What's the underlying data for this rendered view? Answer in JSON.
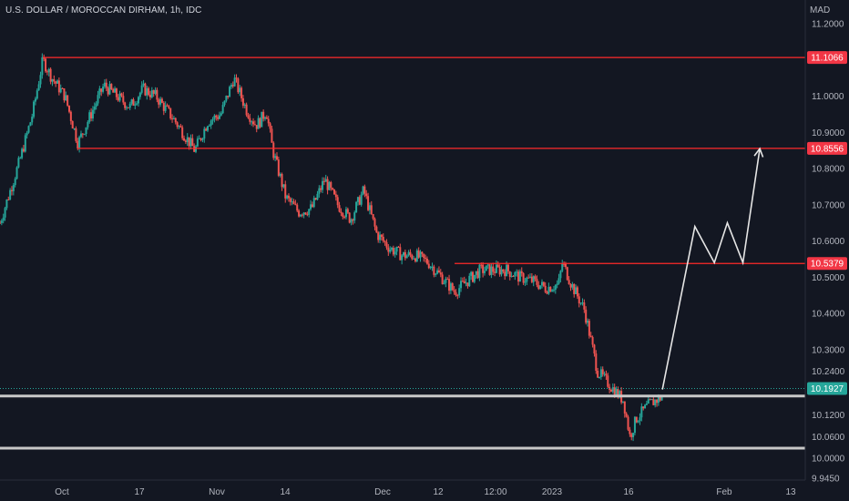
{
  "header": {
    "title": "U.S. DOLLAR / MOROCCAN DIRHAM, 1h, IDC"
  },
  "colors": {
    "background": "#131722",
    "up": "#26a69a",
    "down": "#ef5350",
    "resistance": "#ff2a2a",
    "support": "#c8c8c8",
    "projection": "#e6e6e6",
    "axis_text": "#b2b5be",
    "last_price": "#26a69a"
  },
  "chart_data": {
    "type": "candlestick",
    "title": "U.S. DOLLAR / MOROCCAN DIRHAM, 1h, IDC",
    "currency": "MAD",
    "ylim": [
      9.94,
      11.22
    ],
    "y_ticks": [
      "11.2000",
      "11.0000",
      "10.9000",
      "10.8000",
      "10.7000",
      "10.6000",
      "10.5000",
      "10.4000",
      "10.3000",
      "10.2400",
      "10.1200",
      "10.0600",
      "10.0000",
      "9.9450"
    ],
    "x_ticks": [
      "Oct",
      "17",
      "Nov",
      "14",
      "Dec",
      "12",
      "12:00",
      "2023",
      "16",
      "Feb",
      "13"
    ],
    "price_path": [
      [
        0,
        10.65
      ],
      [
        1.5,
        10.82
      ],
      [
        2.5,
        10.95
      ],
      [
        3.3,
        11.1
      ],
      [
        4,
        11.05
      ],
      [
        5,
        11.0
      ],
      [
        6,
        10.87
      ],
      [
        7,
        10.95
      ],
      [
        8,
        11.03
      ],
      [
        9,
        11.0
      ],
      [
        10,
        10.97
      ],
      [
        11,
        11.02
      ],
      [
        12,
        11.0
      ],
      [
        13.5,
        10.93
      ],
      [
        15,
        10.85
      ],
      [
        16,
        10.93
      ],
      [
        17,
        10.95
      ],
      [
        18,
        11.05
      ],
      [
        19,
        10.96
      ],
      [
        19.7,
        10.92
      ],
      [
        20,
        10.93
      ],
      [
        20.5,
        10.96
      ],
      [
        21,
        10.85
      ],
      [
        22,
        10.72
      ],
      [
        23,
        10.68
      ],
      [
        24,
        10.69
      ],
      [
        25,
        10.77
      ],
      [
        26,
        10.7
      ],
      [
        27,
        10.66
      ],
      [
        28,
        10.74
      ],
      [
        29,
        10.62
      ],
      [
        30,
        10.58
      ],
      [
        31,
        10.56
      ],
      [
        32,
        10.56
      ],
      [
        33,
        10.54
      ],
      [
        34,
        10.5
      ],
      [
        35,
        10.46
      ],
      [
        36,
        10.49
      ],
      [
        37,
        10.52
      ],
      [
        38,
        10.52
      ],
      [
        39,
        10.52
      ],
      [
        40,
        10.5
      ],
      [
        41,
        10.49
      ],
      [
        42,
        10.47
      ],
      [
        43,
        10.48
      ],
      [
        43.3,
        10.54
      ],
      [
        44,
        10.48
      ],
      [
        45,
        10.41
      ],
      [
        46,
        10.24
      ],
      [
        47,
        10.2
      ],
      [
        48,
        10.16
      ],
      [
        48.5,
        10.06
      ],
      [
        49,
        10.11
      ],
      [
        50,
        10.15
      ],
      [
        51,
        10.17
      ]
    ],
    "levels": [
      {
        "name": "resistance-1",
        "price": 11.1066,
        "label": "11.1066",
        "color": "#ff2a2a",
        "type": "resistance",
        "x_from": 3.3
      },
      {
        "name": "resistance-2",
        "price": 10.8556,
        "label": "10.8556",
        "color": "#ff2a2a",
        "type": "resistance",
        "x_from": 6
      },
      {
        "name": "resistance-3",
        "price": 10.5379,
        "label": "10.5379",
        "color": "#ff2a2a",
        "type": "resistance",
        "x_from": 35
      },
      {
        "name": "support-1",
        "price": 10.172,
        "label": "",
        "color": "#c8c8c8",
        "type": "support",
        "x_from": 0
      },
      {
        "name": "support-2",
        "price": 10.028,
        "label": "",
        "color": "#c8c8c8",
        "type": "support",
        "x_from": 0
      }
    ],
    "last_price": {
      "value": 10.1927,
      "label": "10.1927"
    },
    "projection": [
      [
        51,
        10.19
      ],
      [
        53.5,
        10.64
      ],
      [
        55,
        10.54
      ],
      [
        56,
        10.65
      ],
      [
        57.2,
        10.54
      ],
      [
        58.5,
        10.855
      ]
    ]
  }
}
